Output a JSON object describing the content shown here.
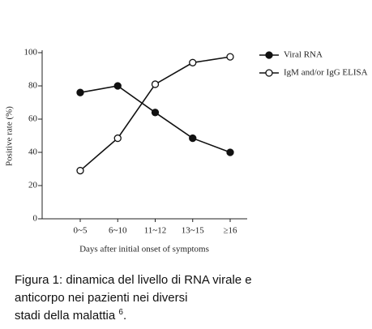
{
  "chart_data": {
    "type": "line",
    "y_label": "Positive rate (%)",
    "x_label": "Days after initial onset of symptoms",
    "categories": [
      "0~5",
      "6~10",
      "11~12",
      "13~15",
      "≥16"
    ],
    "series": [
      {
        "name": "Viral RNA",
        "color": "#111111",
        "marker": "filled",
        "values": [
          76,
          80,
          64,
          48.5,
          40
        ]
      },
      {
        "name": "IgM and/or IgG ELISA",
        "color": "#111111",
        "marker": "open",
        "values": [
          29,
          48.5,
          81,
          94,
          97.5
        ]
      }
    ],
    "ylim": [
      0,
      100
    ],
    "yticks": [
      0,
      20,
      40,
      60,
      80,
      100
    ],
    "legend": "right",
    "caption": {
      "lines": [
        "Figura 1: dinamica del livello di RNA virale e",
        "anticorpo nei pazienti nei diversi",
        "stadi della malattia"
      ],
      "ref": "6",
      "end": "."
    }
  }
}
